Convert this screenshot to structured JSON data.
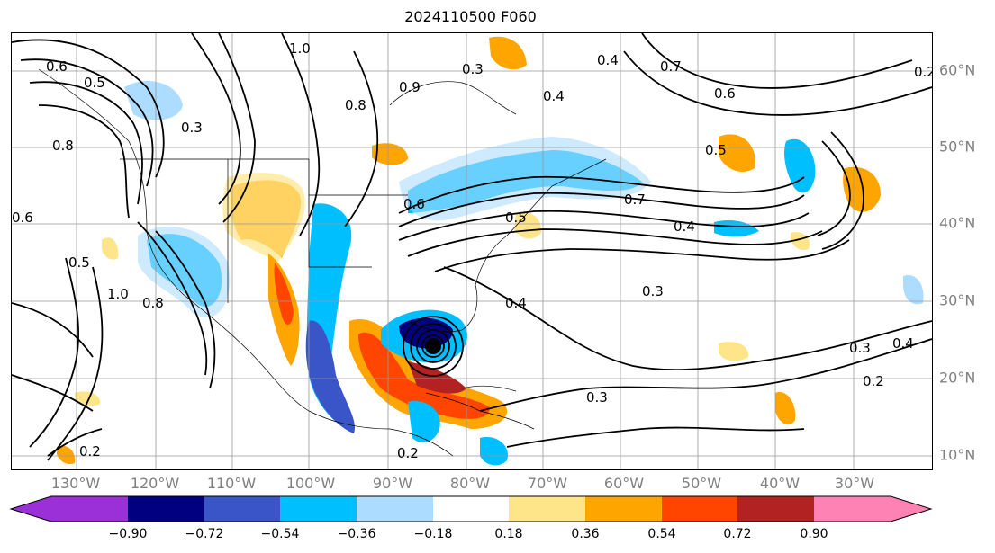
{
  "title": "2024110500 F060",
  "lon_labels": [
    "130°W",
    "120°W",
    "110°W",
    "100°W",
    "90°W",
    "80°W",
    "70°W",
    "60°W",
    "50°W",
    "40°W",
    "30°W"
  ],
  "lat_labels": [
    "60°N",
    "50°N",
    "40°N",
    "30°N",
    "20°N",
    "10°N"
  ],
  "colorbar": {
    "ticks": [
      "−0.90",
      "−0.72",
      "−0.54",
      "−0.36",
      "−0.18",
      "0.18",
      "0.36",
      "0.54",
      "0.72",
      "0.90"
    ],
    "colors": [
      "#9b30d9",
      "#000080",
      "#3a55c8",
      "#00bfff",
      "#acdcff",
      "#ffffff",
      "#ffe58a",
      "#ffa500",
      "#ff4500",
      "#b22222",
      "#ff82b4"
    ]
  },
  "contour_labels": [
    "1.0",
    "0.6",
    "0.5",
    "0.3",
    "0.8",
    "0.9",
    "0.4",
    "0.7",
    "0.6",
    "0.2",
    "0.5",
    "0.7",
    "0.4",
    "0.3",
    "0.4",
    "0.3",
    "0.2",
    "0.2",
    "0.3",
    "0.2",
    "0.4",
    "0.8",
    "0.6",
    "0.6",
    "0.5",
    "1.0",
    "0.8",
    "0.5",
    "0.4",
    "0.3"
  ],
  "map_style": {
    "fill_colors": {
      "neg_strong": "#000080",
      "neg_mid": "#3a55c8",
      "neg_light": "#00bfff",
      "neg_faint": "#acdcff",
      "pos_faint": "#ffe58a",
      "pos_light": "#ffa500",
      "pos_mid": "#ff4500",
      "pos_strong": "#b22222"
    },
    "gridline_color": "#999999",
    "contour_color": "#000000"
  }
}
